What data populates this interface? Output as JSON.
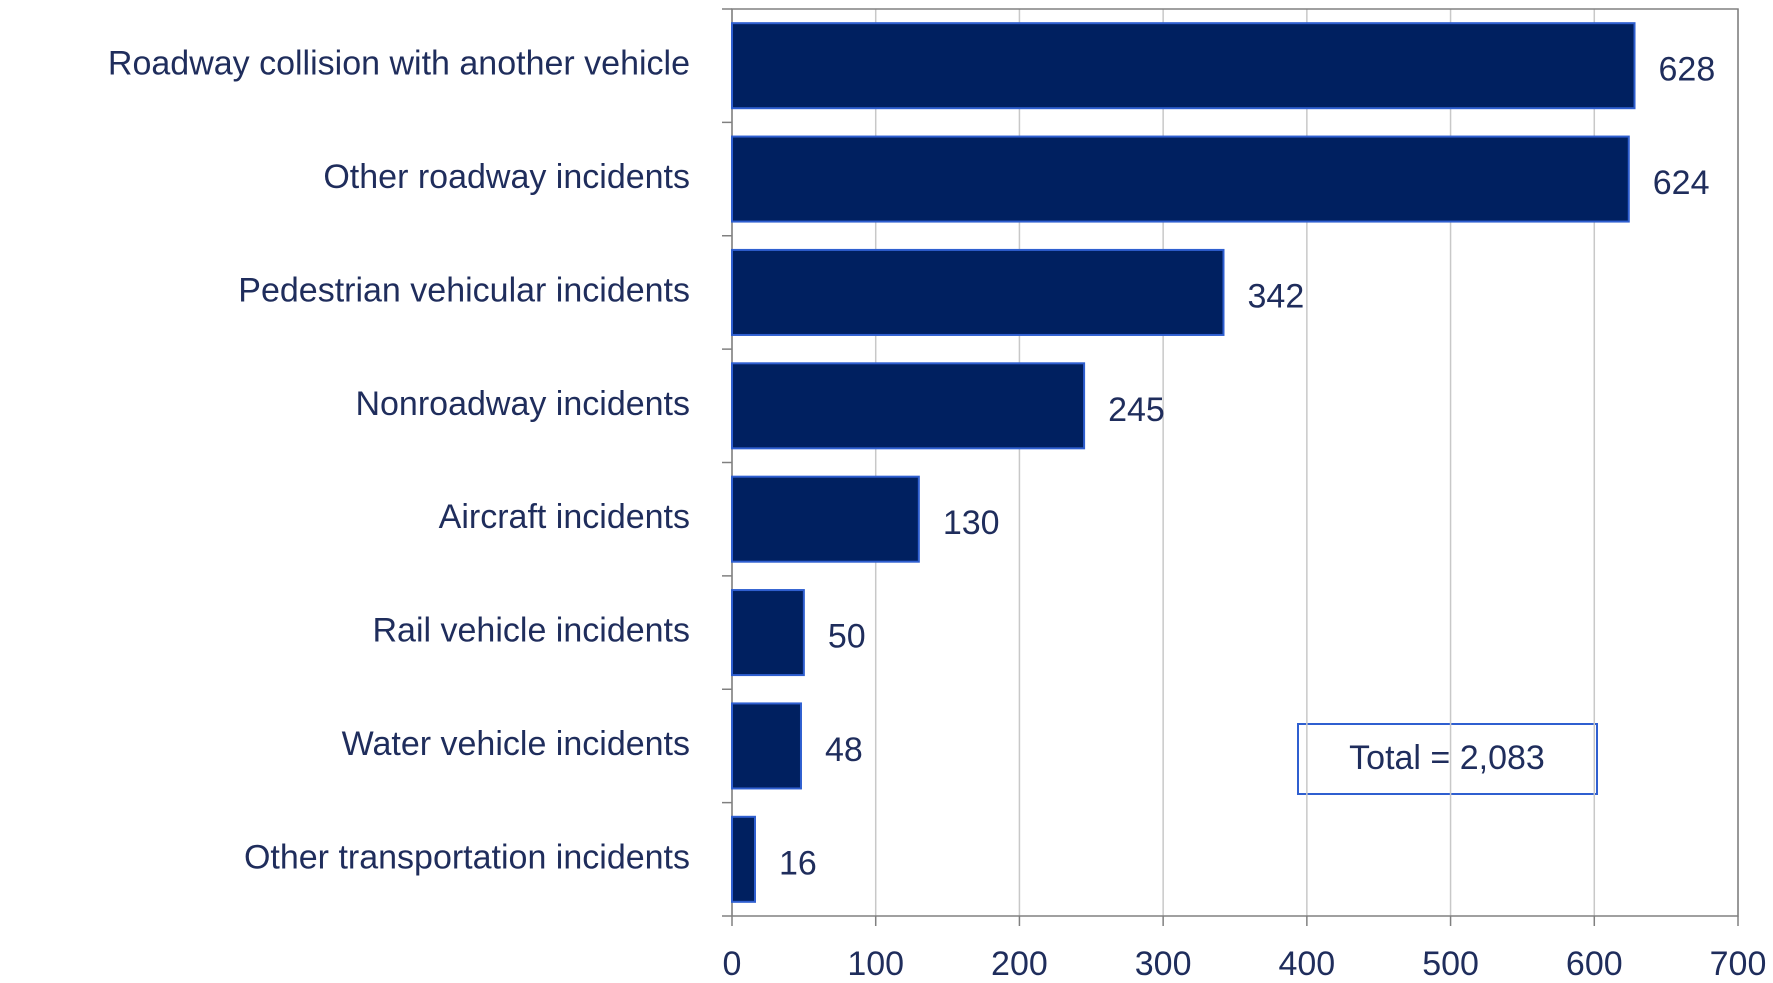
{
  "chart_data": {
    "type": "bar",
    "orientation": "horizontal",
    "categories": [
      "Roadway collision with another vehicle",
      "Other roadway incidents",
      "Pedestrian vehicular incidents",
      "Nonroadway incidents",
      "Aircraft incidents",
      "Rail vehicle incidents",
      "Water vehicle incidents",
      "Other transportation incidents"
    ],
    "values": [
      628,
      624,
      342,
      245,
      130,
      50,
      48,
      16
    ],
    "color": "#002060",
    "xlim": [
      0,
      700
    ],
    "xticks": [
      0,
      100,
      200,
      300,
      400,
      500,
      600,
      700
    ],
    "grid": true,
    "annotation": "Total = 2,083"
  }
}
